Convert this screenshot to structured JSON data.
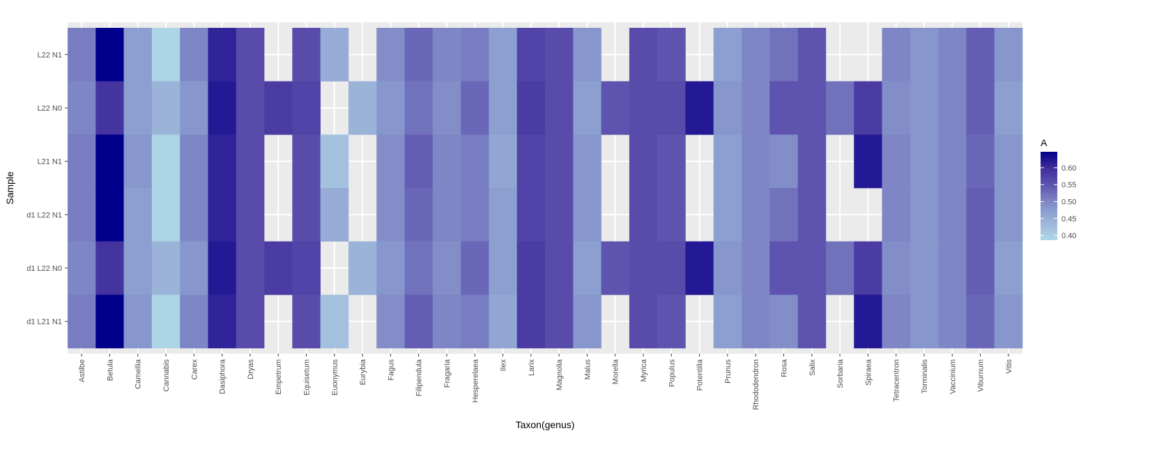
{
  "chart_data": {
    "type": "heatmap",
    "title": "",
    "xlabel": "Taxon(genus)",
    "ylabel": "Sample",
    "legend": {
      "title": "A",
      "position": "right",
      "ticks": [
        0.4,
        0.45,
        0.5,
        0.55,
        0.6
      ],
      "tick_labels": [
        "0.40",
        "0.45",
        "0.50",
        "0.55",
        "0.60"
      ],
      "range": [
        0.386,
        0.647
      ],
      "low_color": "#ADD8E6",
      "high_color": "#00008B"
    },
    "grid": true,
    "rows": [
      "L22 N1",
      "L22 N0",
      "L21 N1",
      "d1 L22 N1",
      "d1 L22 N0",
      "d1 L21 N1"
    ],
    "columns": [
      "Astilbe",
      "Betula",
      "Camellia",
      "Cannabis",
      "Carex",
      "Dasiphora",
      "Dryas",
      "Empetrum",
      "Equisetum",
      "Euonymus",
      "Eurybia",
      "Fagus",
      "Filipendula",
      "Fragaria",
      "Hesperelaea",
      "Ilex",
      "Larix",
      "Magnolia",
      "Malus",
      "Morella",
      "Myrica",
      "Populus",
      "Potentilla",
      "Prunus",
      "Rhododendron",
      "Rosa",
      "Salix",
      "Sorbaria",
      "Spiraea",
      "Tetracentron",
      "Torminalis",
      "Vaccinium",
      "Viburnum",
      "Vitis"
    ],
    "values_by_column": [
      [
        0.51,
        0.5,
        0.51,
        0.51,
        0.5,
        0.51
      ],
      [
        0.647,
        0.59,
        0.647,
        0.647,
        0.59,
        0.647
      ],
      [
        0.47,
        0.47,
        0.48,
        0.47,
        0.47,
        0.48
      ],
      [
        0.39,
        0.44,
        0.39,
        0.39,
        0.44,
        0.39
      ],
      [
        0.5,
        0.48,
        0.5,
        0.5,
        0.48,
        0.5
      ],
      [
        0.61,
        0.62,
        0.61,
        0.61,
        0.62,
        0.61
      ],
      [
        0.56,
        0.56,
        0.56,
        0.56,
        0.56,
        0.56
      ],
      [
        null,
        0.58,
        null,
        null,
        0.58,
        null
      ],
      [
        0.56,
        0.57,
        0.56,
        0.56,
        0.57,
        0.56
      ],
      [
        0.45,
        null,
        0.42,
        0.45,
        null,
        0.42
      ],
      [
        null,
        0.44,
        null,
        null,
        0.44,
        null
      ],
      [
        0.49,
        0.48,
        0.49,
        0.49,
        0.48,
        0.49
      ],
      [
        0.53,
        0.52,
        0.54,
        0.53,
        0.52,
        0.54
      ],
      [
        0.5,
        0.49,
        0.5,
        0.5,
        0.49,
        0.5
      ],
      [
        0.51,
        0.53,
        0.51,
        0.51,
        0.53,
        0.51
      ],
      [
        0.47,
        0.47,
        0.46,
        0.47,
        0.47,
        0.46
      ],
      [
        0.57,
        0.58,
        0.57,
        0.57,
        0.58,
        0.58
      ],
      [
        0.56,
        0.56,
        0.56,
        0.56,
        0.56,
        0.56
      ],
      [
        0.48,
        0.47,
        0.48,
        0.48,
        0.47,
        0.48
      ],
      [
        null,
        0.55,
        null,
        null,
        0.55,
        null
      ],
      [
        0.56,
        0.56,
        0.56,
        0.56,
        0.56,
        0.56
      ],
      [
        0.55,
        0.56,
        0.55,
        0.55,
        0.56,
        0.55
      ],
      [
        null,
        0.62,
        null,
        null,
        0.62,
        null
      ],
      [
        0.47,
        0.48,
        0.47,
        0.47,
        0.48,
        0.47
      ],
      [
        0.5,
        0.5,
        0.5,
        0.5,
        0.5,
        0.5
      ],
      [
        0.52,
        0.55,
        0.49,
        0.52,
        0.55,
        0.49
      ],
      [
        0.55,
        0.55,
        0.55,
        0.55,
        0.55,
        0.55
      ],
      [
        null,
        0.52,
        null,
        null,
        0.52,
        null
      ],
      [
        null,
        0.58,
        0.62,
        null,
        0.58,
        0.62
      ],
      [
        0.5,
        0.49,
        0.5,
        0.5,
        0.49,
        0.5
      ],
      [
        0.48,
        0.48,
        0.48,
        0.48,
        0.48,
        0.48
      ],
      [
        0.5,
        0.5,
        0.5,
        0.5,
        0.5,
        0.5
      ],
      [
        0.54,
        0.54,
        0.53,
        0.54,
        0.54,
        0.53
      ],
      [
        0.48,
        0.47,
        0.48,
        0.48,
        0.47,
        0.48
      ]
    ],
    "panel_background": "#EBEBEB",
    "grid_color": "#FFFFFF"
  }
}
